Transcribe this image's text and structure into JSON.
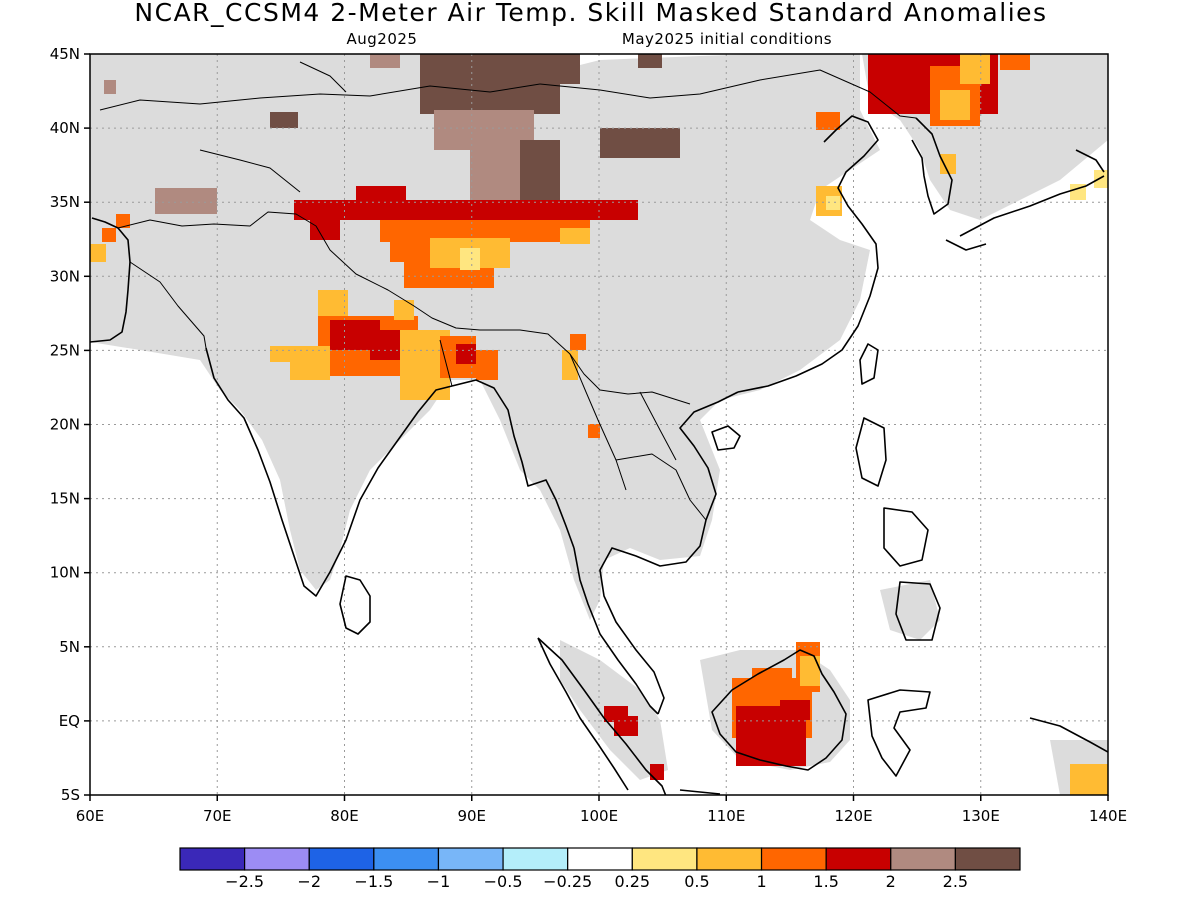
{
  "header": {
    "title": "NCAR_CCSM4 2-Meter Air Temp. Skill Masked Standard Anomalies",
    "target": "Aug2025",
    "init": "May2025 initial conditions"
  },
  "map": {
    "lon_range": [
      60,
      140
    ],
    "lat_range": [
      -5,
      45
    ],
    "x_ticks": [
      {
        "lon": 60,
        "label": "60E"
      },
      {
        "lon": 70,
        "label": "70E"
      },
      {
        "lon": 80,
        "label": "80E"
      },
      {
        "lon": 90,
        "label": "90E"
      },
      {
        "lon": 100,
        "label": "100E"
      },
      {
        "lon": 110,
        "label": "110E"
      },
      {
        "lon": 120,
        "label": "120E"
      },
      {
        "lon": 130,
        "label": "130E"
      },
      {
        "lon": 140,
        "label": "140E"
      }
    ],
    "y_ticks": [
      {
        "lat": 45,
        "label": "45N"
      },
      {
        "lat": 40,
        "label": "40N"
      },
      {
        "lat": 35,
        "label": "35N"
      },
      {
        "lat": 30,
        "label": "30N"
      },
      {
        "lat": 25,
        "label": "25N"
      },
      {
        "lat": 20,
        "label": "20N"
      },
      {
        "lat": 15,
        "label": "15N"
      },
      {
        "lat": 10,
        "label": "10N"
      },
      {
        "lat": 5,
        "label": "5N"
      },
      {
        "lat": 0,
        "label": "EQ"
      },
      {
        "lat": -5,
        "label": "5S"
      }
    ],
    "grid": "dotted",
    "colors": {
      "masked": "#dcdcdc",
      "b05": "#ffe680",
      "b10": "#ffbb33",
      "b15": "#ff6600",
      "b20": "#c80000",
      "b25": "#b08a80",
      "b30": "#704e44"
    }
  },
  "colorbar": {
    "colors": [
      "#3a28b8",
      "#9c8cf4",
      "#1e63e6",
      "#3c8ff2",
      "#78b6f8",
      "#b4eefa",
      "#ffffff",
      "#ffe680",
      "#ffbb33",
      "#ff6600",
      "#c80000",
      "#b08a80",
      "#704e44"
    ],
    "labels": [
      "−2.5",
      "−2",
      "−1.5",
      "−1",
      "−0.5",
      "−0.25",
      "0.25",
      "0.5",
      "1",
      "1.5",
      "2",
      "2.5"
    ]
  }
}
